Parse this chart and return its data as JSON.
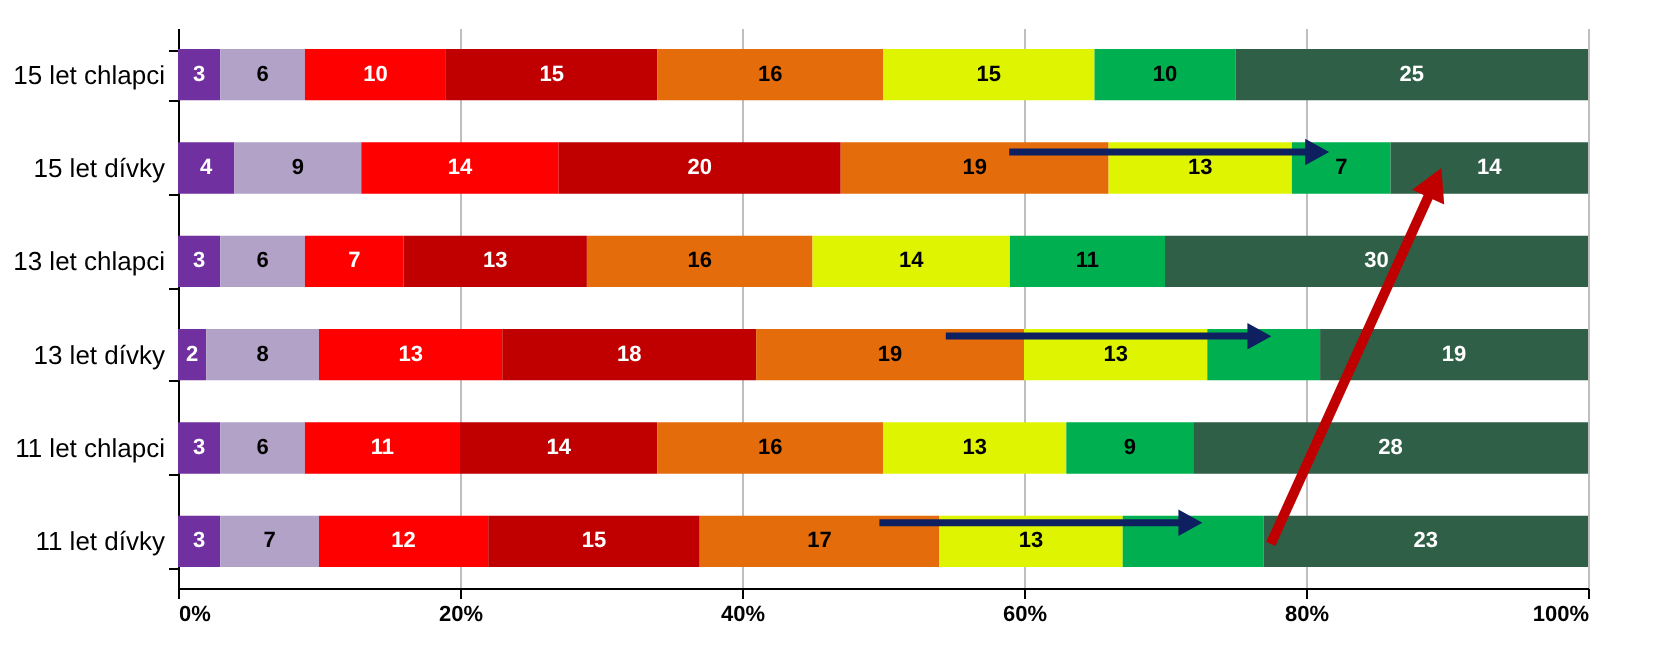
{
  "chart_data": {
    "type": "bar",
    "orientation": "horizontal",
    "stacked": true,
    "categories": [
      "15 let chlapci",
      "15 let dívky",
      "13 let chlapci",
      "13 let dívky",
      "11 let chlapci",
      "11 let dívky"
    ],
    "series": [
      {
        "color": "#7030a0",
        "values": [
          3,
          4,
          3,
          2,
          3,
          3
        ],
        "value_labels": [
          "3",
          "4",
          "3",
          "2",
          "3",
          "3"
        ]
      },
      {
        "color": "#b3a2c7",
        "values": [
          6,
          9,
          6,
          8,
          6,
          7
        ],
        "value_labels": [
          "6",
          "9",
          "6",
          "8",
          "6",
          "7"
        ]
      },
      {
        "color": "#ff0000",
        "values": [
          10,
          14,
          7,
          13,
          11,
          12
        ],
        "value_labels": [
          "10",
          "14",
          "7",
          "13",
          "11",
          "12"
        ]
      },
      {
        "color": "#c00000",
        "values": [
          15,
          20,
          13,
          18,
          14,
          15
        ],
        "value_labels": [
          "15",
          "20",
          "13",
          "18",
          "14",
          "15"
        ]
      },
      {
        "color": "#e46c0a",
        "values": [
          16,
          19,
          16,
          19,
          16,
          17
        ],
        "value_labels": [
          "16",
          "19",
          "16",
          "19",
          "16",
          "17"
        ]
      },
      {
        "color": "#dff400",
        "values": [
          15,
          13,
          14,
          13,
          13,
          13
        ],
        "value_labels": [
          "15",
          "13",
          "14",
          "13",
          "13",
          "13"
        ]
      },
      {
        "color": "#00b050",
        "values": [
          10,
          7,
          11,
          8,
          9,
          10
        ],
        "value_labels": [
          "10",
          "7",
          "11",
          null,
          "9",
          null
        ]
      },
      {
        "color": "#2f5f46",
        "values": [
          25,
          14,
          30,
          19,
          28,
          23
        ],
        "value_labels": [
          "25",
          "14",
          "30",
          "19",
          "28",
          "23"
        ]
      }
    ],
    "xlim": [
      0,
      100
    ],
    "xticks": [
      {
        "value": 0,
        "label": "0%"
      },
      {
        "value": 20,
        "label": "20%"
      },
      {
        "value": 40,
        "label": "40%"
      },
      {
        "value": 60,
        "label": "60%"
      },
      {
        "value": 80,
        "label": "80%"
      },
      {
        "value": 100,
        "label": "100%"
      }
    ],
    "grid": "x"
  }
}
